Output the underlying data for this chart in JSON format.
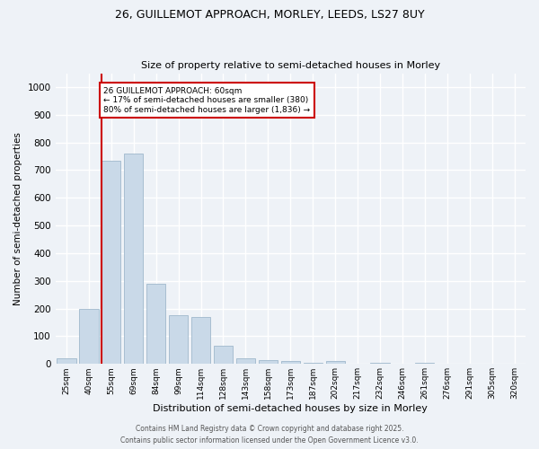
{
  "title_line1": "26, GUILLEMOT APPROACH, MORLEY, LEEDS, LS27 8UY",
  "title_line2": "Size of property relative to semi-detached houses in Morley",
  "xlabel": "Distribution of semi-detached houses by size in Morley",
  "ylabel": "Number of semi-detached properties",
  "categories": [
    "25sqm",
    "40sqm",
    "55sqm",
    "69sqm",
    "84sqm",
    "99sqm",
    "114sqm",
    "128sqm",
    "143sqm",
    "158sqm",
    "173sqm",
    "187sqm",
    "202sqm",
    "217sqm",
    "232sqm",
    "246sqm",
    "261sqm",
    "276sqm",
    "291sqm",
    "305sqm",
    "320sqm"
  ],
  "values": [
    20,
    200,
    735,
    760,
    290,
    175,
    170,
    65,
    20,
    15,
    10,
    5,
    10,
    0,
    5,
    0,
    5,
    0,
    0,
    0,
    0
  ],
  "bar_color": "#c9d9e8",
  "bar_edge_color": "#a0b8cc",
  "vline_color": "#cc0000",
  "annotation_text": "26 GUILLEMOT APPROACH: 60sqm\n← 17% of semi-detached houses are smaller (380)\n80% of semi-detached houses are larger (1,836) →",
  "annotation_box_color": "#cc0000",
  "ylim": [
    0,
    1050
  ],
  "yticks": [
    0,
    100,
    200,
    300,
    400,
    500,
    600,
    700,
    800,
    900,
    1000
  ],
  "background_color": "#eef2f7",
  "grid_color": "#ffffff",
  "footer_line1": "Contains HM Land Registry data © Crown copyright and database right 2025.",
  "footer_line2": "Contains public sector information licensed under the Open Government Licence v3.0."
}
